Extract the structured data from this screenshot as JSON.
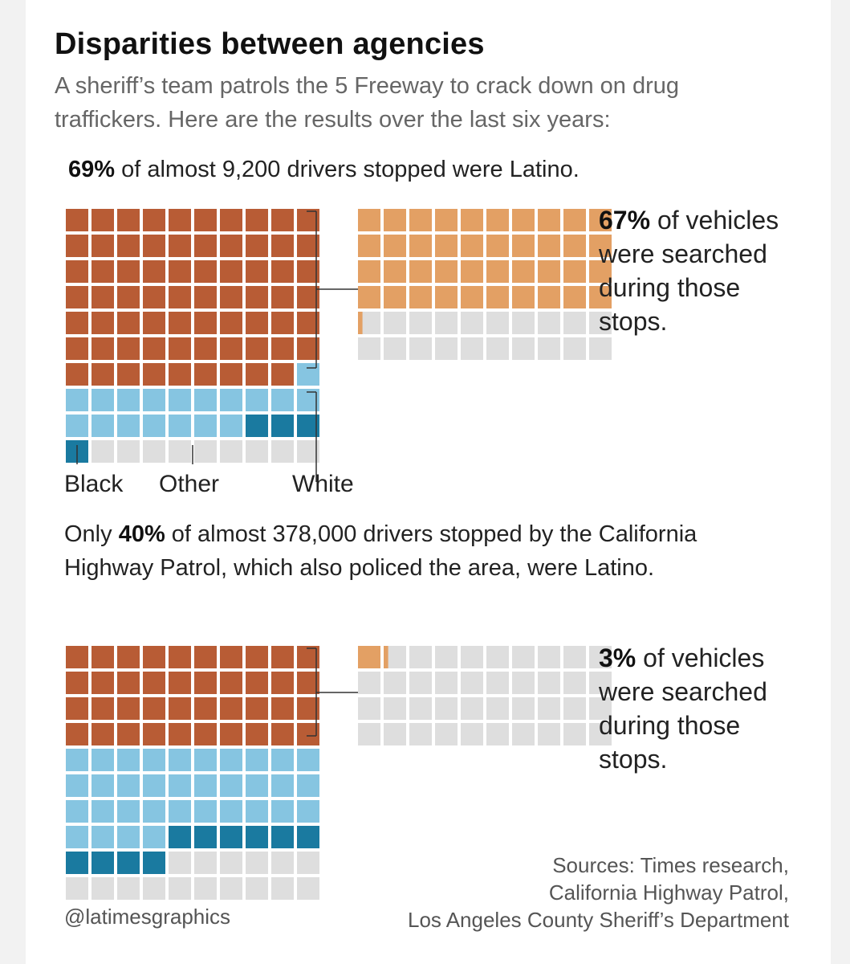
{
  "title": "Disparities between agencies",
  "subtitle_lines": [
    "A sheriff’s team patrols the 5 Freeway to crack down on drug",
    "traffickers. Here are the results over the last six years:"
  ],
  "sheriff": {
    "sentence_pct": "69%",
    "sentence_rest": " of almost 9,200 drivers stopped were Latino.",
    "stat_pct": "67%",
    "stat_rest": " of vehicles were searched during those stops."
  },
  "labels": {
    "black": "Black",
    "other": "Other",
    "white": "White"
  },
  "chp": {
    "sentence_prefix": "Only ",
    "sentence_pct": "40%",
    "sentence_rest": " of almost 378,000 drivers stopped by the California Highway Patrol, which also policed the area, were Latino.",
    "stat_pct": "3%",
    "stat_rest": " of vehicles were searched during those stops."
  },
  "credit": "@latimesgraphics",
  "sources": [
    "Sources: Times research,",
    "California Highway Patrol,",
    "Los Angeles County Sheriff’s Department"
  ],
  "colors": {
    "latino": "#b85c35",
    "white": "#86c5e1",
    "black": "#1a7aa0",
    "empty": "#dedede",
    "searched": "#e3a064"
  },
  "chart_data": [
    {
      "type": "waffle",
      "agency": "Los Angeles County Sheriff's Department",
      "unit": "percent of drivers stopped",
      "categories": [
        "Latino",
        "White",
        "Black",
        "Other"
      ],
      "values": [
        69,
        18,
        4,
        9
      ]
    },
    {
      "type": "waffle",
      "agency": "Los Angeles County Sheriff's Department",
      "unit": "percent of Latino stops",
      "categories": [
        "Searched",
        "Not searched"
      ],
      "values": [
        67,
        33
      ]
    },
    {
      "type": "waffle",
      "agency": "California Highway Patrol",
      "unit": "percent of drivers stopped",
      "categories": [
        "Latino",
        "White",
        "Black",
        "Other"
      ],
      "values": [
        40,
        34,
        10,
        16
      ]
    },
    {
      "type": "waffle",
      "agency": "California Highway Patrol",
      "unit": "percent of Latino stops",
      "categories": [
        "Searched",
        "Not searched"
      ],
      "values": [
        3,
        97
      ]
    }
  ]
}
